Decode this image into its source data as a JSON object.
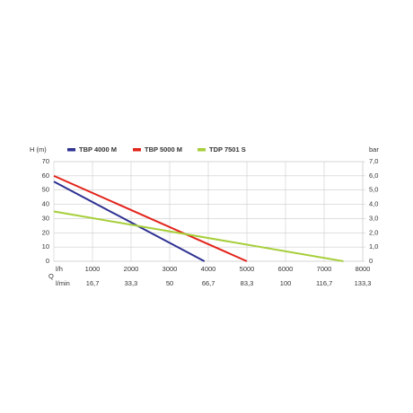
{
  "chart_data": {
    "type": "line",
    "ylabel": "H (m)",
    "y2label": "bar",
    "xlabel": "l/h",
    "x2label": "l/min",
    "annotation": "Q",
    "xlim": [
      0,
      8000
    ],
    "xticks": [
      1000,
      2000,
      3000,
      4000,
      5000,
      6000,
      7000,
      8000
    ],
    "x2lim": [
      0,
      133.3
    ],
    "x2ticks": [
      {
        "value": 16.7,
        "label": "16,7"
      },
      {
        "value": 33.3,
        "label": "33,3"
      },
      50,
      {
        "value": 66.7,
        "label": "66,7"
      },
      {
        "value": 83.3,
        "label": "83,3"
      },
      100,
      {
        "value": 116.7,
        "label": "116,7"
      },
      {
        "value": 133.3,
        "label": "133,3"
      }
    ],
    "ylim": [
      0,
      70
    ],
    "yticks": [
      0,
      10,
      20,
      30,
      40,
      50,
      60,
      70
    ],
    "y2lim": [
      0,
      7
    ],
    "y2ticks": [
      0,
      {
        "value": 1,
        "label": "1,0"
      },
      {
        "value": 2,
        "label": "2,0"
      },
      {
        "value": 3,
        "label": "3,0"
      },
      {
        "value": 4,
        "label": "4,0"
      },
      {
        "value": 5,
        "label": "5,0"
      },
      {
        "value": 6,
        "label": "6,0"
      },
      {
        "value": 7,
        "label": "7,0"
      }
    ],
    "grid": true,
    "series": [
      {
        "name": "TBP 4000 M",
        "color": "#2e3192",
        "x": [
          0,
          3900
        ],
        "values": [
          56,
          0
        ]
      },
      {
        "name": "TBP 5000 M",
        "color": "#e2231a",
        "x": [
          0,
          5000
        ],
        "values": [
          60,
          0
        ]
      },
      {
        "name": "TDP 7501 S",
        "color": "#a6ce39",
        "x": [
          0,
          7500
        ],
        "values": [
          35,
          0
        ]
      }
    ]
  }
}
